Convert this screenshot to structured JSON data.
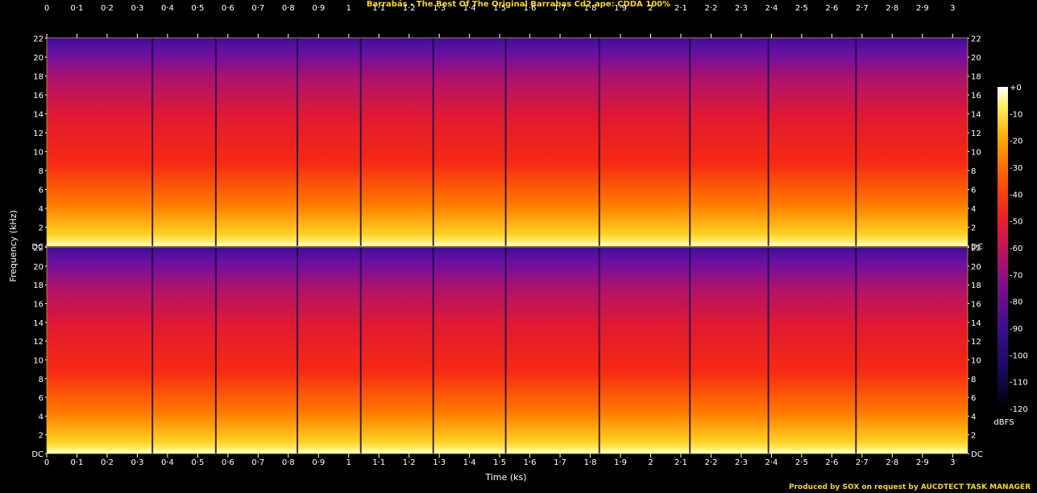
{
  "title": "Barrabás - The Best Of The Original Barrabas Cd2.ape: CDDA 100%",
  "credit": "Produced by SOX on request by AUCDTECT TASK MANAGER",
  "chart_data": {
    "type": "heatmap",
    "xlabel": "Time (ks)",
    "ylabel": "Frequency (kHz)",
    "colorbar_label": "dBFS",
    "xlim": [
      0,
      3.05
    ],
    "ylim": [
      0,
      22.05
    ],
    "x_ticks": [
      "0",
      "0·1",
      "0·2",
      "0·3",
      "0·4",
      "0·5",
      "0·6",
      "0·7",
      "0·8",
      "0·9",
      "1",
      "1·1",
      "1·2",
      "1·3",
      "1·4",
      "1·5",
      "1·6",
      "1·7",
      "1·8",
      "1·9",
      "2",
      "2·1",
      "2·2",
      "2·3",
      "2·4",
      "2·5",
      "2·6",
      "2·7",
      "2·8",
      "2·9",
      "3"
    ],
    "y_ticks": [
      "DC",
      "2",
      "4",
      "6",
      "8",
      "10",
      "12",
      "14",
      "16",
      "18",
      "20",
      "22"
    ],
    "colorbar_ticks": [
      "+0",
      "-10",
      "-20",
      "-30",
      "-40",
      "-50",
      "-60",
      "-70",
      "-80",
      "-90",
      "-100",
      "-110",
      "-120"
    ],
    "colorbar_range": [
      -120,
      0
    ],
    "channels": 2,
    "track_boundaries_ks": [
      0.35,
      0.56,
      0.83,
      1.04,
      1.28,
      1.52,
      1.83,
      2.13,
      2.39,
      2.68
    ],
    "colors": {
      "background": "#000000",
      "title": "#ffd700",
      "scale": [
        "#000000",
        "#1a0a5c",
        "#3c0e8c",
        "#6a0f8a",
        "#a2127a",
        "#d81a48",
        "#f02818",
        "#ff5a00",
        "#ff9a00",
        "#ffd21e",
        "#ffffb0",
        "#ffffff"
      ]
    }
  }
}
